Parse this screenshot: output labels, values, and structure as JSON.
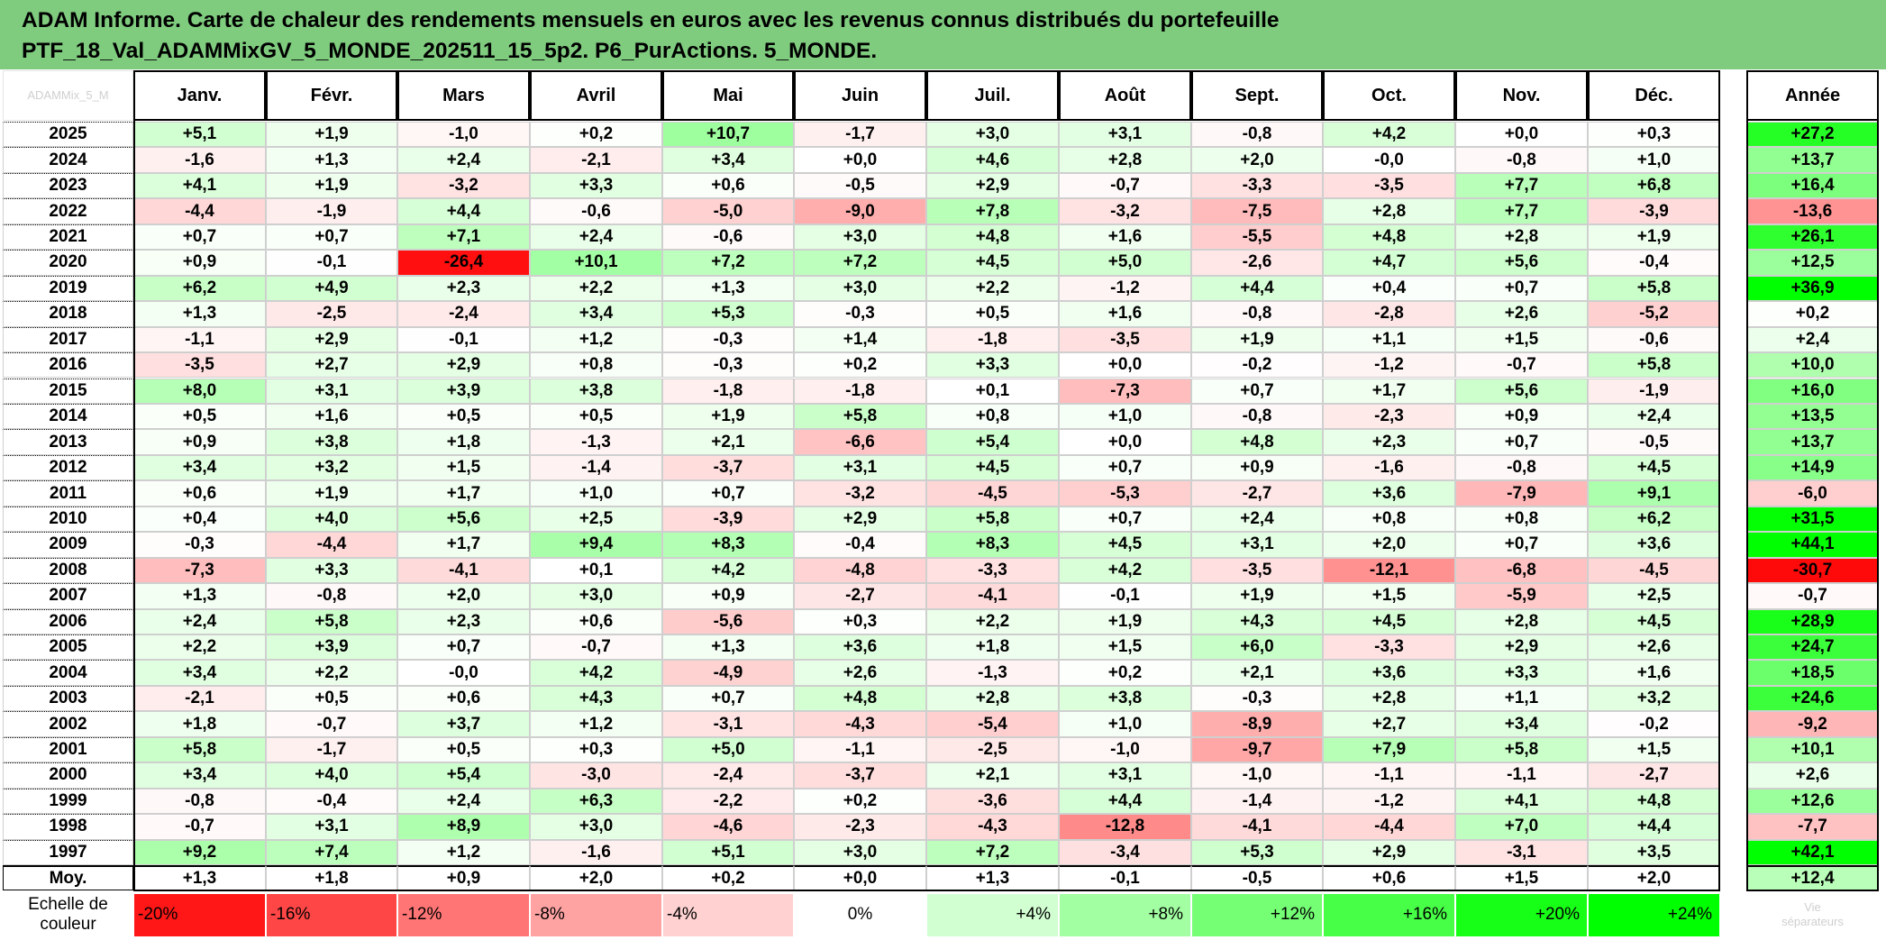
{
  "title": {
    "line1": "ADAM Informe. Carte de chaleur des rendements mensuels en euros avec les revenus connus distribués du portefeuille",
    "line2": "PTF_18_Val_ADAMMixGV_5_MONDE_202511_15_5p2. P6_PurActions. 5_MONDE."
  },
  "corner_text": "ADAMMix_5_M",
  "chart_data": {
    "type": "heatmap",
    "columns": [
      "Janv.",
      "Févr.",
      "Mars",
      "Avril",
      "Mai",
      "Juin",
      "Juil.",
      "Août",
      "Sept.",
      "Oct.",
      "Nov.",
      "Déc."
    ],
    "annual_header": "Année",
    "rows": [
      {
        "year": "2025",
        "values": [
          "+5,1",
          "+1,9",
          "-1,0",
          "+0,2",
          "+10,7",
          "-1,7",
          "+3,0",
          "+3,1",
          "-0,8",
          "+4,2",
          "+0,0",
          "+0,3"
        ],
        "annual": "+27,2"
      },
      {
        "year": "2024",
        "values": [
          "-1,6",
          "+1,3",
          "+2,4",
          "-2,1",
          "+3,4",
          "+0,0",
          "+4,6",
          "+2,8",
          "+2,0",
          "-0,0",
          "-0,8",
          "+1,0"
        ],
        "annual": "+13,7"
      },
      {
        "year": "2023",
        "values": [
          "+4,1",
          "+1,9",
          "-3,2",
          "+3,3",
          "+0,6",
          "-0,5",
          "+2,9",
          "-0,7",
          "-3,3",
          "-3,5",
          "+7,7",
          "+6,8"
        ],
        "annual": "+16,4"
      },
      {
        "year": "2022",
        "values": [
          "-4,4",
          "-1,9",
          "+4,4",
          "-0,6",
          "-5,0",
          "-9,0",
          "+7,8",
          "-3,2",
          "-7,5",
          "+2,8",
          "+7,7",
          "-3,9"
        ],
        "annual": "-13,6"
      },
      {
        "year": "2021",
        "values": [
          "+0,7",
          "+0,7",
          "+7,1",
          "+2,4",
          "-0,6",
          "+3,0",
          "+4,8",
          "+1,6",
          "-5,5",
          "+4,8",
          "+2,8",
          "+1,9"
        ],
        "annual": "+26,1"
      },
      {
        "year": "2020",
        "values": [
          "+0,9",
          "-0,1",
          "-26,4",
          "+10,1",
          "+7,2",
          "+7,2",
          "+4,5",
          "+5,0",
          "-2,6",
          "+4,7",
          "+5,6",
          "-0,4"
        ],
        "annual": "+12,5"
      },
      {
        "year": "2019",
        "values": [
          "+6,2",
          "+4,9",
          "+2,3",
          "+2,2",
          "+1,3",
          "+3,0",
          "+2,2",
          "-1,2",
          "+4,4",
          "+0,4",
          "+0,7",
          "+5,8"
        ],
        "annual": "+36,9"
      },
      {
        "year": "2018",
        "values": [
          "+1,3",
          "-2,5",
          "-2,4",
          "+3,4",
          "+5,3",
          "-0,3",
          "+0,5",
          "+1,6",
          "-0,8",
          "-2,8",
          "+2,6",
          "-5,2"
        ],
        "annual": "+0,2"
      },
      {
        "year": "2017",
        "values": [
          "-1,1",
          "+2,9",
          "-0,1",
          "+1,2",
          "-0,3",
          "+1,4",
          "-1,8",
          "-3,5",
          "+1,9",
          "+1,1",
          "+1,5",
          "-0,6"
        ],
        "annual": "+2,4"
      },
      {
        "year": "2016",
        "values": [
          "-3,5",
          "+2,7",
          "+2,9",
          "+0,8",
          "-0,3",
          "+0,2",
          "+3,3",
          "+0,0",
          "-0,2",
          "-1,2",
          "-0,7",
          "+5,8"
        ],
        "annual": "+10,0"
      },
      {
        "year": "2015",
        "values": [
          "+8,0",
          "+3,1",
          "+3,9",
          "+3,8",
          "-1,8",
          "-1,8",
          "+0,1",
          "-7,3",
          "+0,7",
          "+1,7",
          "+5,6",
          "-1,9"
        ],
        "annual": "+16,0"
      },
      {
        "year": "2014",
        "values": [
          "+0,5",
          "+1,6",
          "+0,5",
          "+0,5",
          "+1,9",
          "+5,8",
          "+0,8",
          "+1,0",
          "-0,8",
          "-2,3",
          "+0,9",
          "+2,4"
        ],
        "annual": "+13,5"
      },
      {
        "year": "2013",
        "values": [
          "+0,9",
          "+3,8",
          "+1,8",
          "-1,3",
          "+2,1",
          "-6,6",
          "+5,4",
          "+0,0",
          "+4,8",
          "+2,3",
          "+0,7",
          "-0,5"
        ],
        "annual": "+13,7"
      },
      {
        "year": "2012",
        "values": [
          "+3,4",
          "+3,2",
          "+1,5",
          "-1,4",
          "-3,7",
          "+3,1",
          "+4,5",
          "+0,7",
          "+0,9",
          "-1,6",
          "-0,8",
          "+4,5"
        ],
        "annual": "+14,9"
      },
      {
        "year": "2011",
        "values": [
          "+0,6",
          "+1,9",
          "+1,7",
          "+1,0",
          "+0,7",
          "-3,2",
          "-4,5",
          "-5,3",
          "-2,7",
          "+3,6",
          "-7,9",
          "+9,1"
        ],
        "annual": "-6,0"
      },
      {
        "year": "2010",
        "values": [
          "+0,4",
          "+4,0",
          "+5,6",
          "+2,5",
          "-3,9",
          "+2,9",
          "+5,8",
          "+0,7",
          "+2,4",
          "+0,8",
          "+0,8",
          "+6,2"
        ],
        "annual": "+31,5"
      },
      {
        "year": "2009",
        "values": [
          "-0,3",
          "-4,4",
          "+1,7",
          "+9,4",
          "+8,3",
          "-0,4",
          "+8,3",
          "+4,5",
          "+3,1",
          "+2,0",
          "+0,7",
          "+3,6"
        ],
        "annual": "+44,1"
      },
      {
        "year": "2008",
        "values": [
          "-7,3",
          "+3,3",
          "-4,1",
          "+0,1",
          "+4,2",
          "-4,8",
          "-3,3",
          "+4,2",
          "-3,5",
          "-12,1",
          "-6,8",
          "-4,5"
        ],
        "annual": "-30,7"
      },
      {
        "year": "2007",
        "values": [
          "+1,3",
          "-0,8",
          "+2,0",
          "+3,0",
          "+0,9",
          "-2,7",
          "-4,1",
          "-0,1",
          "+1,9",
          "+1,5",
          "-5,9",
          "+2,5"
        ],
        "annual": "-0,7"
      },
      {
        "year": "2006",
        "values": [
          "+2,4",
          "+5,8",
          "+2,3",
          "+0,6",
          "-5,6",
          "+0,3",
          "+2,2",
          "+1,9",
          "+4,3",
          "+4,5",
          "+2,8",
          "+4,5"
        ],
        "annual": "+28,9"
      },
      {
        "year": "2005",
        "values": [
          "+2,2",
          "+3,9",
          "+0,7",
          "-0,7",
          "+1,3",
          "+3,6",
          "+1,8",
          "+1,5",
          "+6,0",
          "-3,3",
          "+2,9",
          "+2,6"
        ],
        "annual": "+24,7"
      },
      {
        "year": "2004",
        "values": [
          "+3,4",
          "+2,2",
          "-0,0",
          "+4,2",
          "-4,9",
          "+2,6",
          "-1,3",
          "+0,2",
          "+2,1",
          "+3,6",
          "+3,3",
          "+1,6"
        ],
        "annual": "+18,5"
      },
      {
        "year": "2003",
        "values": [
          "-2,1",
          "+0,5",
          "+0,6",
          "+4,3",
          "+0,7",
          "+4,8",
          "+2,8",
          "+3,8",
          "-0,3",
          "+2,8",
          "+1,1",
          "+3,2"
        ],
        "annual": "+24,6"
      },
      {
        "year": "2002",
        "values": [
          "+1,8",
          "-0,7",
          "+3,7",
          "+1,2",
          "-3,1",
          "-4,3",
          "-5,4",
          "+1,0",
          "-8,9",
          "+2,7",
          "+3,4",
          "-0,2"
        ],
        "annual": "-9,2"
      },
      {
        "year": "2001",
        "values": [
          "+5,8",
          "-1,7",
          "+0,5",
          "+0,3",
          "+5,0",
          "-1,1",
          "-2,5",
          "-1,0",
          "-9,7",
          "+7,9",
          "+5,8",
          "+1,5"
        ],
        "annual": "+10,1"
      },
      {
        "year": "2000",
        "values": [
          "+3,4",
          "+4,0",
          "+5,4",
          "-3,0",
          "-2,4",
          "-3,7",
          "+2,1",
          "+3,1",
          "-1,0",
          "-1,1",
          "-1,1",
          "-2,7"
        ],
        "annual": "+2,6"
      },
      {
        "year": "1999",
        "values": [
          "-0,8",
          "-0,4",
          "+2,4",
          "+6,3",
          "-2,2",
          "+0,2",
          "-3,6",
          "+4,4",
          "-1,4",
          "-1,2",
          "+4,1",
          "+4,8"
        ],
        "annual": "+12,6"
      },
      {
        "year": "1998",
        "values": [
          "-0,7",
          "+3,1",
          "+8,9",
          "+3,0",
          "-4,6",
          "-2,3",
          "-4,3",
          "-12,8",
          "-4,1",
          "-4,4",
          "+7,0",
          "+4,4"
        ],
        "annual": "-7,7"
      },
      {
        "year": "1997",
        "values": [
          "+9,2",
          "+7,4",
          "+1,2",
          "-1,6",
          "+5,1",
          "+3,0",
          "+7,2",
          "-3,4",
          "+5,3",
          "+2,9",
          "-3,1",
          "+3,5"
        ],
        "annual": "+42,1"
      }
    ],
    "average": {
      "label": "Moy.",
      "values": [
        "+1,3",
        "+1,8",
        "+0,9",
        "+2,0",
        "+0,2",
        "+0,0",
        "+1,3",
        "-0,1",
        "-0,5",
        "+0,6",
        "+1,5",
        "+2,0"
      ],
      "annual": "+12,4"
    },
    "scale": {
      "label_line1": "Echelle de",
      "label_line2": "couleur",
      "entries": [
        "-20%",
        "-16%",
        "-12%",
        "-8%",
        "-4%",
        "0%",
        "+4%",
        "+8%",
        "+12%",
        "+16%",
        "+20%",
        "+24%"
      ],
      "faded_line1": "Vie",
      "faded_line2": "séparateurs"
    },
    "colors": {
      "negative_max": "#ff0000",
      "zero": "#ffffff",
      "positive_max": "#00ff00",
      "title_band": "#7fcc7f"
    }
  }
}
